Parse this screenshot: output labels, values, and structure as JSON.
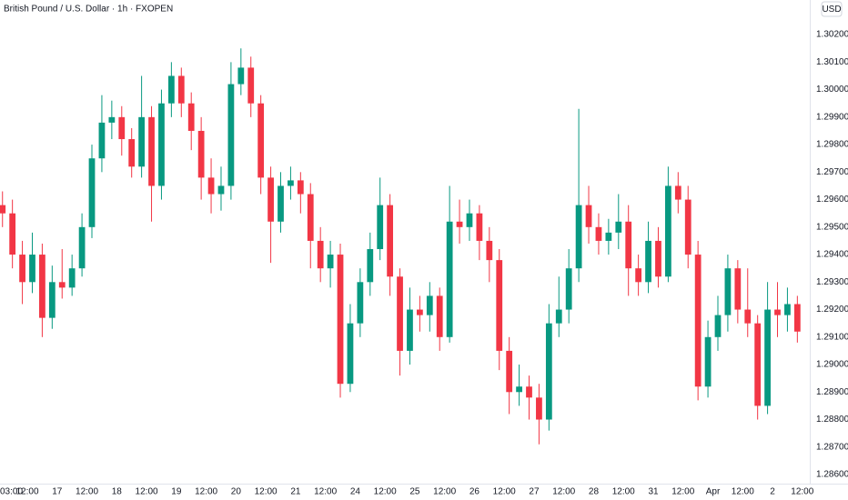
{
  "chart_data": {
    "type": "candlestick",
    "title": "British Pound / U.S. Dollar · 1h · FXOPEN",
    "currency": "USD",
    "up_color": "#089981",
    "down_color": "#f23645",
    "grid": false,
    "open": [
      1.2958,
      1.2955,
      1.294,
      1.293,
      1.294,
      1.2917,
      1.293,
      1.2928,
      1.2935,
      1.295,
      1.2975,
      1.2988,
      1.299,
      1.2982,
      1.2972,
      1.299,
      1.2965,
      1.2995,
      1.3005,
      1.2995,
      1.2985,
      1.2968,
      1.2962,
      1.2965,
      1.3002,
      1.3008,
      1.2995,
      1.2968,
      1.2952,
      1.2965,
      1.2967,
      1.2962,
      1.2945,
      1.2935,
      1.294,
      1.2893,
      1.2915,
      1.293,
      1.2942,
      1.2958,
      1.2932,
      1.2905,
      1.292,
      1.2918,
      1.2925,
      1.291,
      1.2952,
      1.295,
      1.2955,
      1.2945,
      1.2938,
      1.2905,
      1.289,
      1.2892,
      1.2888,
      1.288,
      1.2915,
      1.292,
      1.2935,
      1.2958,
      1.295,
      1.2945,
      1.2948,
      1.2952,
      1.2935,
      1.293,
      1.2945,
      1.2932,
      1.2965,
      1.296,
      1.294,
      1.2892,
      1.291,
      1.2918,
      1.2935,
      1.292,
      1.2915,
      1.2885,
      1.292,
      1.2918,
      1.2922
    ],
    "high": [
      1.2963,
      1.296,
      1.2945,
      1.2948,
      1.2944,
      1.2936,
      1.2942,
      1.294,
      1.2955,
      1.298,
      1.2998,
      1.2996,
      1.2994,
      1.2986,
      1.3005,
      1.2994,
      1.3,
      1.301,
      1.3008,
      1.2999,
      1.299,
      1.2975,
      1.2972,
      1.301,
      1.3015,
      1.3012,
      1.2998,
      1.2972,
      1.297,
      1.2972,
      1.297,
      1.2966,
      1.295,
      1.2945,
      1.2944,
      1.2922,
      1.2935,
      1.2948,
      1.2968,
      1.2962,
      1.2935,
      1.2928,
      1.2925,
      1.293,
      1.2928,
      1.2965,
      1.296,
      1.296,
      1.2958,
      1.295,
      1.2942,
      1.291,
      1.29,
      1.2896,
      1.2893,
      1.2922,
      1.2932,
      1.2942,
      1.2993,
      1.2965,
      1.2955,
      1.2953,
      1.2962,
      1.2958,
      1.294,
      1.2952,
      1.295,
      1.2972,
      1.297,
      1.2965,
      1.2945,
      1.2916,
      1.2925,
      1.294,
      1.2938,
      1.2935,
      1.2918,
      1.293,
      1.293,
      1.2928,
      1.2925
    ],
    "low": [
      1.295,
      1.2935,
      1.2922,
      1.2926,
      1.291,
      1.2913,
      1.2924,
      1.2925,
      1.2932,
      1.2946,
      1.297,
      1.2982,
      1.2976,
      1.2968,
      1.2968,
      1.2952,
      1.296,
      1.299,
      1.299,
      1.2978,
      1.296,
      1.2955,
      1.2956,
      1.296,
      1.2998,
      1.299,
      1.2962,
      1.2937,
      1.2948,
      1.296,
      1.2955,
      1.2935,
      1.293,
      1.2928,
      1.2888,
      1.289,
      1.291,
      1.2925,
      1.2938,
      1.2925,
      1.2896,
      1.29,
      1.2912,
      1.2912,
      1.2905,
      1.2908,
      1.2944,
      1.2945,
      1.2938,
      1.293,
      1.2898,
      1.2882,
      1.2885,
      1.288,
      1.2871,
      1.2876,
      1.291,
      1.2915,
      1.293,
      1.2944,
      1.294,
      1.294,
      1.2942,
      1.2925,
      1.2925,
      1.2926,
      1.2928,
      1.293,
      1.2955,
      1.2935,
      1.2887,
      1.2888,
      1.2905,
      1.2912,
      1.2915,
      1.291,
      1.288,
      1.2882,
      1.291,
      1.2912,
      1.2908
    ],
    "close": [
      1.2955,
      1.294,
      1.293,
      1.294,
      1.2917,
      1.293,
      1.2928,
      1.2935,
      1.295,
      1.2975,
      1.2988,
      1.299,
      1.2982,
      1.2972,
      1.299,
      1.2965,
      1.2995,
      1.3005,
      1.2995,
      1.2985,
      1.2968,
      1.2962,
      1.2965,
      1.3002,
      1.3008,
      1.2995,
      1.2968,
      1.2952,
      1.2965,
      1.2967,
      1.2962,
      1.2945,
      1.2935,
      1.294,
      1.2893,
      1.2915,
      1.293,
      1.2942,
      1.2958,
      1.2932,
      1.2905,
      1.292,
      1.2918,
      1.2925,
      1.291,
      1.2952,
      1.295,
      1.2955,
      1.2945,
      1.2938,
      1.2905,
      1.289,
      1.2892,
      1.2888,
      1.288,
      1.2915,
      1.292,
      1.2935,
      1.2958,
      1.295,
      1.2945,
      1.2948,
      1.2952,
      1.2935,
      1.293,
      1.2945,
      1.2932,
      1.2965,
      1.296,
      1.294,
      1.2892,
      1.291,
      1.2918,
      1.2935,
      1.292,
      1.2915,
      1.2885,
      1.292,
      1.2918,
      1.2922,
      1.2912
    ],
    "ylim": [
      1.28567,
      1.30326
    ],
    "yticks": [
      {
        "value": 1.286,
        "label": "1.28600"
      },
      {
        "value": 1.287,
        "label": "1.28700"
      },
      {
        "value": 1.288,
        "label": "1.28800"
      },
      {
        "value": 1.289,
        "label": "1.28900"
      },
      {
        "value": 1.29,
        "label": "1.29000"
      },
      {
        "value": 1.291,
        "label": "1.29100"
      },
      {
        "value": 1.292,
        "label": "1.29200"
      },
      {
        "value": 1.293,
        "label": "1.29300"
      },
      {
        "value": 1.294,
        "label": "1.29400"
      },
      {
        "value": 1.295,
        "label": "1.29500"
      },
      {
        "value": 1.296,
        "label": "1.29600"
      },
      {
        "value": 1.297,
        "label": "1.29700"
      },
      {
        "value": 1.298,
        "label": "1.29800"
      },
      {
        "value": 1.299,
        "label": "1.29900"
      },
      {
        "value": 1.3,
        "label": "1.30000"
      },
      {
        "value": 1.301,
        "label": "1.30100"
      },
      {
        "value": 1.302,
        "label": "1.30200"
      }
    ],
    "xlim": [
      -0.25,
      81.25
    ],
    "xticks": [
      {
        "value": 0.25,
        "label": "03:00"
      },
      {
        "value": 2.5,
        "label": "12:00"
      },
      {
        "value": 5.5,
        "label": "17"
      },
      {
        "value": 8.5,
        "label": "12:00"
      },
      {
        "value": 11.5,
        "label": "18"
      },
      {
        "value": 14.5,
        "label": "12:00"
      },
      {
        "value": 17.5,
        "label": "19"
      },
      {
        "value": 20.5,
        "label": "12:00"
      },
      {
        "value": 23.5,
        "label": "20"
      },
      {
        "value": 26.5,
        "label": "12:00"
      },
      {
        "value": 29.5,
        "label": "21"
      },
      {
        "value": 32.5,
        "label": "12:00"
      },
      {
        "value": 35.5,
        "label": "24"
      },
      {
        "value": 38.5,
        "label": "12:00"
      },
      {
        "value": 41.5,
        "label": "25"
      },
      {
        "value": 44.5,
        "label": "12:00"
      },
      {
        "value": 47.5,
        "label": "26"
      },
      {
        "value": 50.5,
        "label": "12:00"
      },
      {
        "value": 53.5,
        "label": "27"
      },
      {
        "value": 56.5,
        "label": "12:00"
      },
      {
        "value": 59.5,
        "label": "28"
      },
      {
        "value": 62.5,
        "label": "12:00"
      },
      {
        "value": 65.5,
        "label": "31"
      },
      {
        "value": 68.5,
        "label": "12:00"
      },
      {
        "value": 71.5,
        "label": "Apr"
      },
      {
        "value": 74.5,
        "label": "12:00"
      },
      {
        "value": 77.5,
        "label": "2"
      },
      {
        "value": 80.5,
        "label": "12:00"
      }
    ]
  }
}
